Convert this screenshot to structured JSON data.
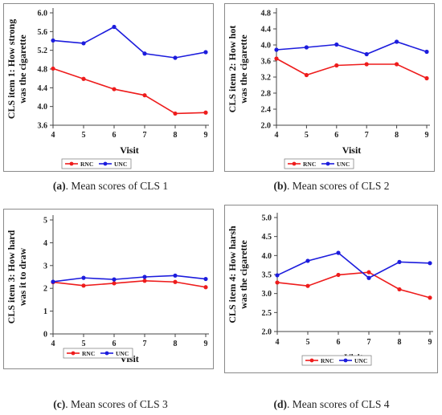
{
  "chart_data": [
    {
      "type": "line",
      "id": "a",
      "ylabel_lines": [
        "CLS item 1: How strong",
        "was the cigarette"
      ],
      "xlabel": "Visit",
      "categories": [
        4,
        5,
        6,
        7,
        8,
        9
      ],
      "yticks": [
        "3.6",
        "4.0",
        "4.4",
        "4.8",
        "5.2",
        "5.6",
        "6.0"
      ],
      "ylim": [
        3.6,
        6.0
      ],
      "series": [
        {
          "name": "RNC",
          "color": "#ee1c1c",
          "values": [
            4.81,
            4.59,
            4.37,
            4.24,
            3.85,
            3.87
          ]
        },
        {
          "name": "UNC",
          "color": "#1c1cdd",
          "values": [
            5.41,
            5.35,
            5.7,
            5.13,
            5.04,
            5.16
          ]
        }
      ],
      "legend": "bottom-center",
      "caption_tag": "(a)",
      "caption_text": ". Mean scores of CLS 1"
    },
    {
      "type": "line",
      "id": "b",
      "ylabel_lines": [
        "CLS item 2: How hot",
        "was the cigarette"
      ],
      "xlabel": "Visit",
      "categories": [
        4,
        5,
        6,
        7,
        8,
        9
      ],
      "yticks": [
        "2.0",
        "2.4",
        "2.8",
        "3.2",
        "3.6",
        "4.0",
        "4.4",
        "4.8"
      ],
      "ylim": [
        2.0,
        4.8
      ],
      "series": [
        {
          "name": "RNC",
          "color": "#ee1c1c",
          "values": [
            3.66,
            3.25,
            3.49,
            3.52,
            3.52,
            3.17
          ]
        },
        {
          "name": "UNC",
          "color": "#1c1cdd",
          "values": [
            3.88,
            3.94,
            4.01,
            3.77,
            4.08,
            3.83
          ]
        }
      ],
      "legend": "bottom-center",
      "caption_tag": "(b)",
      "caption_text": ". Mean scores of CLS 2"
    },
    {
      "type": "line",
      "id": "c",
      "ylabel_lines": [
        "CLS item 3: How hard",
        "was it to draw"
      ],
      "xlabel": "Visit",
      "categories": [
        4,
        5,
        6,
        7,
        8,
        9
      ],
      "yticks": [
        "0",
        "1",
        "2",
        "3",
        "4",
        "5"
      ],
      "ylim": [
        0,
        5
      ],
      "series": [
        {
          "name": "RNC",
          "color": "#ee1c1c",
          "values": [
            2.27,
            2.12,
            2.22,
            2.33,
            2.28,
            2.05
          ]
        },
        {
          "name": "UNC",
          "color": "#1c1cdd",
          "values": [
            2.29,
            2.46,
            2.39,
            2.5,
            2.56,
            2.41
          ]
        }
      ],
      "legend": "bottom-center",
      "caption_tag": "(c)",
      "caption_text": ". Mean scores of CLS 3"
    },
    {
      "type": "line",
      "id": "d",
      "ylabel_lines": [
        "CLS item 4: How harsh",
        "was the cigarette"
      ],
      "xlabel": "Visit",
      "categories": [
        4,
        5,
        6,
        7,
        8,
        9
      ],
      "yticks": [
        "2.0",
        "2.5",
        "3.0",
        "3.5",
        "4.0",
        "4.5",
        "5.0"
      ],
      "ylim": [
        2.0,
        5.0
      ],
      "series": [
        {
          "name": "RNC",
          "color": "#ee1c1c",
          "values": [
            3.29,
            3.2,
            3.49,
            3.56,
            3.11,
            2.89
          ]
        },
        {
          "name": "UNC",
          "color": "#1c1cdd",
          "values": [
            3.48,
            3.86,
            4.07,
            3.41,
            3.83,
            3.8
          ]
        }
      ],
      "legend": "bottom-center",
      "caption_tag": "(d)",
      "caption_text": ". Mean scores of CLS 4"
    }
  ]
}
